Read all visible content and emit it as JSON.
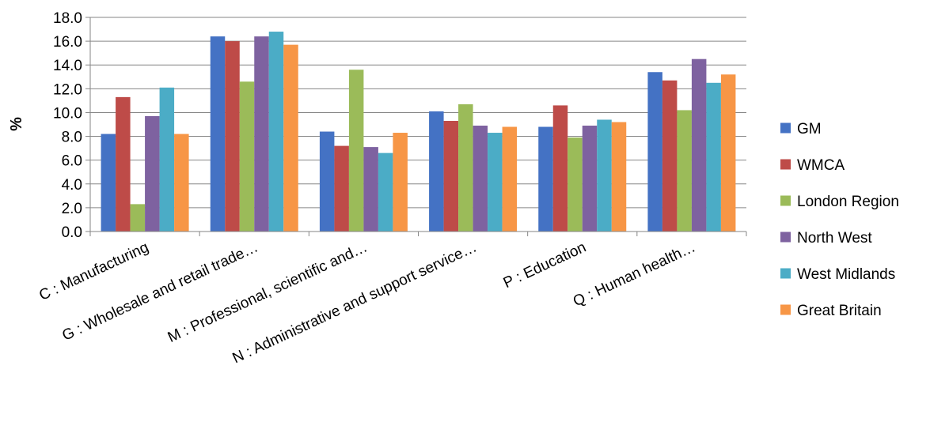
{
  "chart_data": {
    "type": "bar",
    "title": "",
    "xlabel": "",
    "ylabel": "%",
    "ylim": [
      0,
      18
    ],
    "ytick_step": 2,
    "ytick_labels": [
      "0.0",
      "2.0",
      "4.0",
      "6.0",
      "8.0",
      "10.0",
      "12.0",
      "14.0",
      "16.0",
      "18.0"
    ],
    "grid": "horizontal",
    "legend_position": "right",
    "categories": [
      "C : Manufacturing",
      "G : Wholesale and retail trade…",
      "M : Professional, scientific and…",
      "N : Administrative and support service…",
      "P : Education",
      "Q : Human health…"
    ],
    "series": [
      {
        "name": "GM",
        "color": "#4472C4",
        "values": [
          8.2,
          16.4,
          8.4,
          10.1,
          8.8,
          13.4
        ]
      },
      {
        "name": "WMCA",
        "color": "#BE4B48",
        "values": [
          11.3,
          16.0,
          7.2,
          9.3,
          10.6,
          12.7
        ]
      },
      {
        "name": "London Region",
        "color": "#9BBB59",
        "values": [
          2.3,
          12.6,
          13.6,
          10.7,
          7.9,
          10.2
        ]
      },
      {
        "name": "North West",
        "color": "#7E62A0",
        "values": [
          9.7,
          16.4,
          7.1,
          8.9,
          8.9,
          14.5
        ]
      },
      {
        "name": "West Midlands",
        "color": "#4BACC6",
        "values": [
          12.1,
          16.8,
          6.6,
          8.3,
          9.4,
          12.5
        ]
      },
      {
        "name": "Great Britain",
        "color": "#F79646",
        "values": [
          8.2,
          15.7,
          8.3,
          8.8,
          9.2,
          13.2
        ]
      }
    ]
  }
}
